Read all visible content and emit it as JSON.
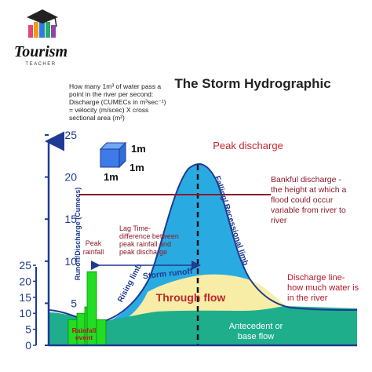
{
  "logo": {
    "word": "Tourism",
    "tagline": "TEACHER"
  },
  "title": "The Storm Hydrographic",
  "info_box": {
    "lines": [
      "How many 1m³ of water pass a",
      "point in the river per second:",
      "Discharge (CUMECs in m³sec⁻¹)",
      "= velocity (m/scec) X cross",
      "sectional area (m²)"
    ]
  },
  "cube": {
    "label_a": "1m",
    "label_b": "1m",
    "label_c": "1m"
  },
  "left_axis": {
    "label": "Runoff/Discharge (Cumecs)",
    "ticks": [
      "25",
      "20",
      "15",
      "10",
      "5",
      "0"
    ]
  },
  "rain_axis": {
    "ticks": [
      "25",
      "20",
      "15",
      "10",
      "5",
      "0"
    ]
  },
  "labels": {
    "peak_discharge": "Peak discharge",
    "bankful": [
      "Bankful discharge -",
      "the height at which a",
      "flood could occur",
      "variable from river to",
      "river"
    ],
    "lag_time": [
      "Lag Time-",
      "difference between",
      "peak rainfall and",
      "peak discharge"
    ],
    "peak_rainfall": [
      "Peak",
      "rainfall"
    ],
    "rising_limb": "Rising limb",
    "falling_limb": "Falling/ Recessional limb",
    "storm_runoff": "Storm runoff",
    "through_flow": "Through flow",
    "discharge_line": [
      "Discharge line-",
      "how much water is",
      "in the river"
    ],
    "base_flow": [
      "Antecedent or",
      "base flow"
    ],
    "rainfall_event": [
      "Rainfall",
      "event"
    ]
  },
  "rainfall_bars": [
    8,
    10,
    12,
    23,
    8
  ],
  "colors": {
    "runoff": "#29ABE2",
    "through_flow": "#F7EDA7",
    "base_flow": "#1FAE8C",
    "rain": "#22DD22",
    "accent_red": "#B5152B",
    "label_red": "#C1272D",
    "bankful_line": "#8B1A2A",
    "dark_blue": "#1F3A93"
  }
}
